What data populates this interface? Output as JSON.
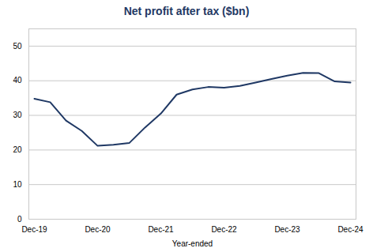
{
  "chart_data": {
    "type": "line",
    "title": "Net profit after tax ($bn)",
    "xlabel": "Year-ended",
    "categories": [
      "Dec-19",
      null,
      null,
      null,
      "Dec-20",
      null,
      null,
      null,
      "Dec-21",
      null,
      null,
      null,
      "Dec-22",
      null,
      null,
      null,
      "Dec-23",
      null,
      null,
      null,
      "Dec-24"
    ],
    "values": [
      34.8,
      33.8,
      28.5,
      25.5,
      21.2,
      21.5,
      22.0,
      26.5,
      30.5,
      36.0,
      37.5,
      38.2,
      38.0,
      38.5,
      39.5,
      40.5,
      41.5,
      42.3,
      42.2,
      39.8,
      39.5
    ],
    "color": "#1f3864",
    "ylim": [
      0,
      55
    ],
    "yticks": [
      0,
      10,
      20,
      30,
      40,
      50
    ],
    "grid": true
  }
}
